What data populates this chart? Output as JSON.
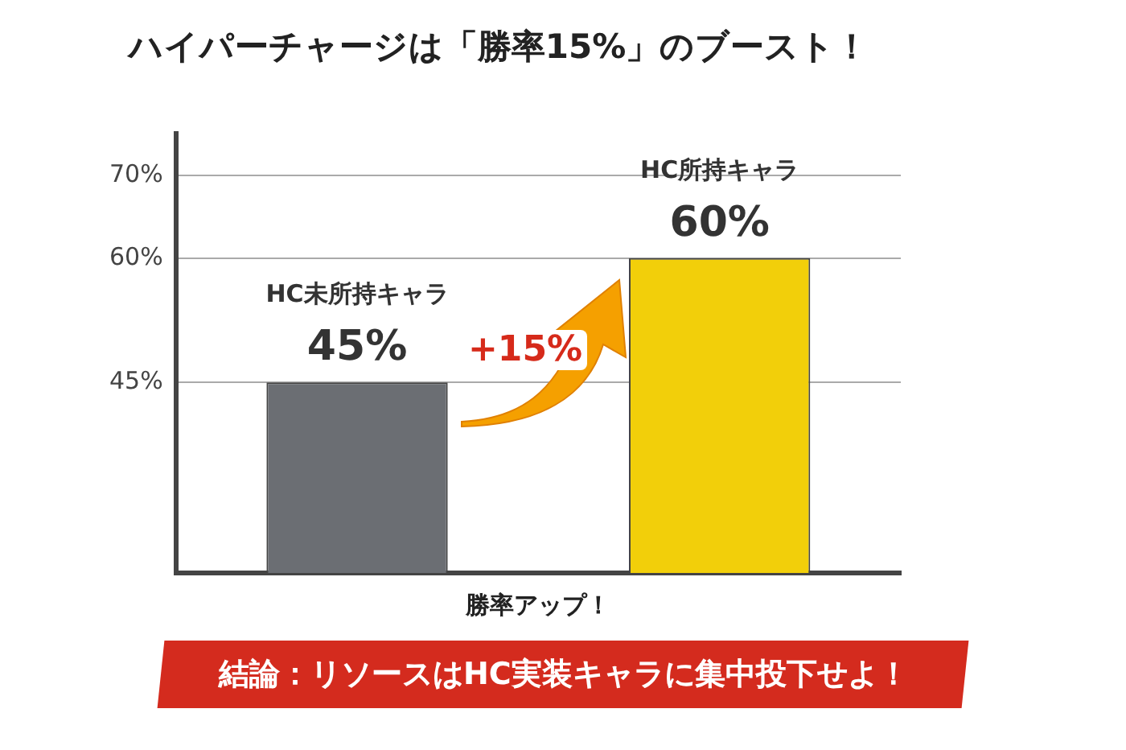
{
  "chart_data": {
    "type": "bar",
    "title": "ハイパーチャージは「勝率15%」のブースト！",
    "categories": [
      "HC未所持キャラ",
      "HC所持キャラ"
    ],
    "values": [
      45,
      60
    ],
    "value_labels": [
      "45%",
      "60%"
    ],
    "colors": [
      "#6b6e73",
      "#f2cf0a"
    ],
    "xlabel": "勝率アップ！",
    "ylim": [
      22,
      75
    ],
    "yticks": [
      {
        "value": 45,
        "label": "45%"
      },
      {
        "value": 60,
        "label": "60%"
      },
      {
        "value": 70,
        "label": "70%"
      }
    ],
    "grid": "y",
    "annotations": [
      "+15%",
      "結論：リソースはHC実装キャラに集中投下せよ！"
    ]
  }
}
